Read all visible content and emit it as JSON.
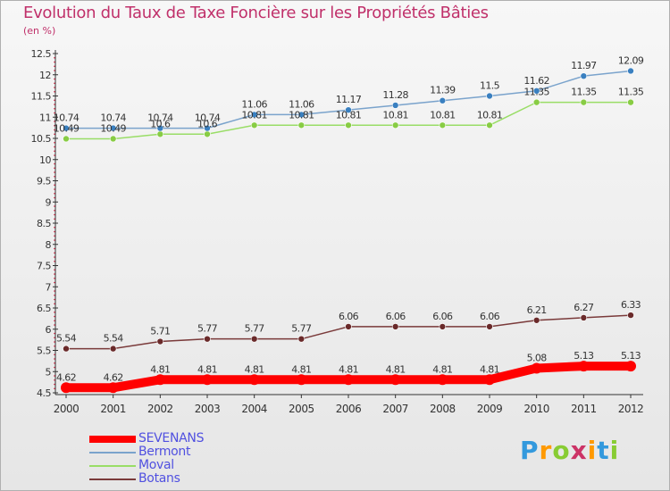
{
  "chart_data": {
    "type": "line",
    "title": "Evolution du Taux de Taxe Foncière sur les Propriétés Bâties",
    "ylabel": "(en %)",
    "xlabel": "",
    "ylim": [
      4.5,
      12.5
    ],
    "yticks": [
      "4.5",
      "5",
      "5.5",
      "6",
      "6.5",
      "7",
      "7.5",
      "8",
      "8.5",
      "9",
      "9.5",
      "10",
      "10.5",
      "11",
      "11.5",
      "12",
      "12.5"
    ],
    "categories": [
      "2000",
      "2001",
      "2002",
      "2003",
      "2004",
      "2005",
      "2006",
      "2007",
      "2008",
      "2009",
      "2010",
      "2011",
      "2012"
    ],
    "series": [
      {
        "name": "SEVENANS",
        "color": "#ff0000",
        "point_color": "#ff0000",
        "width": 10,
        "radius": 6,
        "values": [
          4.62,
          4.62,
          4.81,
          4.81,
          4.81,
          4.81,
          4.81,
          4.81,
          4.81,
          4.81,
          5.08,
          5.13,
          5.13
        ],
        "labels": [
          "4.62",
          "4.62",
          "4.81",
          "4.81",
          "4.81",
          "4.81",
          "4.81",
          "4.81",
          "4.81",
          "4.81",
          "5.08",
          "5.13",
          "5.13"
        ]
      },
      {
        "name": "Bermont",
        "color": "#7aa3cc",
        "point_color": "#3a80c0",
        "width": 1.5,
        "radius": 3.5,
        "values": [
          10.74,
          10.74,
          10.74,
          10.74,
          11.06,
          11.06,
          11.17,
          11.28,
          11.39,
          11.5,
          11.62,
          11.97,
          12.09
        ],
        "labels": [
          "10.74",
          "10.74",
          "10.74",
          "10.74",
          "11.06",
          "11.06",
          "11.17",
          "11.28",
          "11.39",
          "11.5",
          "11.62",
          "11.97",
          "12.09"
        ]
      },
      {
        "name": "Moval",
        "color": "#99dd66",
        "point_color": "#88cc44",
        "width": 1.5,
        "radius": 3.5,
        "values": [
          10.49,
          10.49,
          10.6,
          10.6,
          10.81,
          10.81,
          10.81,
          10.81,
          10.81,
          10.81,
          11.35,
          11.35,
          11.35
        ],
        "labels": [
          "10.49",
          "10.49",
          "10.6",
          "10.6",
          "10.81",
          "10.81",
          "10.81",
          "10.81",
          "10.81",
          "10.81",
          "11.35",
          "11.35",
          "11.35"
        ]
      },
      {
        "name": "Botans",
        "color": "#7a3a3a",
        "point_color": "#6a2a2a",
        "width": 1.5,
        "radius": 3.5,
        "values": [
          5.54,
          5.54,
          5.71,
          5.77,
          5.77,
          5.77,
          6.06,
          6.06,
          6.06,
          6.06,
          6.21,
          6.27,
          6.33
        ],
        "labels": [
          "5.54",
          "5.54",
          "5.71",
          "5.77",
          "5.77",
          "5.77",
          "6.06",
          "6.06",
          "6.06",
          "6.06",
          "6.21",
          "6.27",
          "6.33"
        ]
      }
    ],
    "grid": false,
    "legend": "bottom-left"
  },
  "legend_order": [
    0,
    1,
    2,
    3
  ],
  "logo": {
    "letters": [
      "P",
      "r",
      "o",
      "x",
      "i",
      "t",
      "i"
    ],
    "colors": [
      "#3399dd",
      "#ff9900",
      "#88cc33",
      "#cc3366",
      "#ff9900",
      "#3399dd",
      "#88cc33"
    ]
  }
}
